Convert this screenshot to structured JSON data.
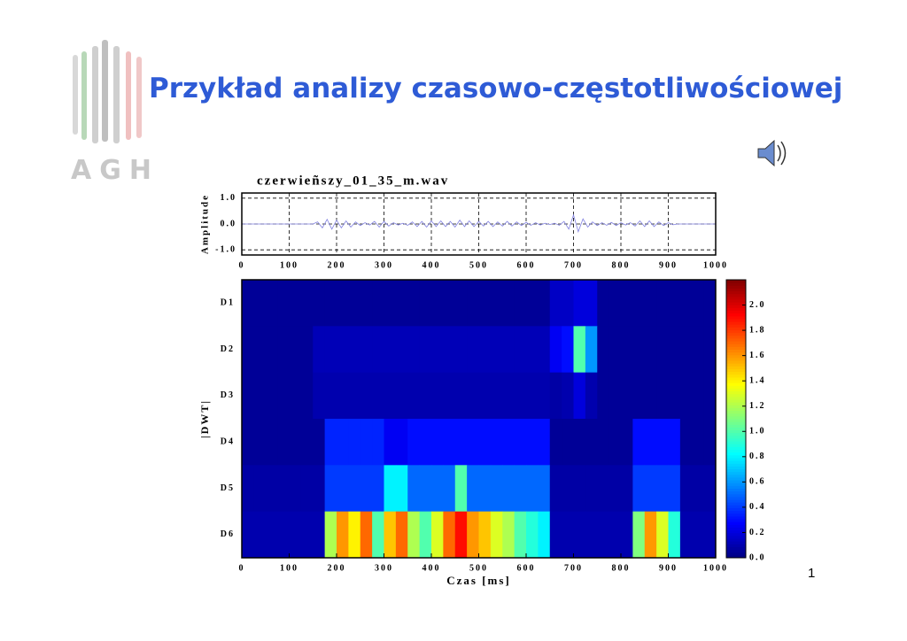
{
  "header": {
    "title": "Przykład analizy czasowo-częstotliwościowej",
    "logo": "AGH"
  },
  "page_number": "1",
  "chart_data": [
    {
      "type": "line",
      "title": "czerwieñszy_01_35_m.wav",
      "y_label": "Amplitude",
      "color": "#8080e0",
      "grid": true,
      "xlim": [
        0,
        1000
      ],
      "xticks": [
        0,
        100,
        200,
        300,
        400,
        500,
        600,
        700,
        800,
        900,
        1000
      ],
      "ylim": [
        -1.2,
        1.2
      ],
      "yticks": [
        {
          "value": 1,
          "label": "1.0"
        },
        {
          "value": 0,
          "label": "0.0"
        },
        {
          "value": -1,
          "label": "-1.0"
        }
      ],
      "x": [
        0,
        10,
        20,
        30,
        40,
        50,
        60,
        70,
        80,
        90,
        100,
        110,
        120,
        130,
        140,
        150,
        160,
        170,
        180,
        190,
        200,
        210,
        220,
        230,
        240,
        250,
        260,
        270,
        280,
        290,
        300,
        310,
        320,
        330,
        340,
        350,
        360,
        370,
        380,
        390,
        400,
        410,
        420,
        430,
        440,
        450,
        460,
        470,
        480,
        490,
        500,
        510,
        520,
        530,
        540,
        550,
        560,
        570,
        580,
        590,
        600,
        610,
        620,
        630,
        640,
        650,
        660,
        670,
        680,
        690,
        700,
        710,
        720,
        730,
        740,
        750,
        760,
        770,
        780,
        790,
        800,
        810,
        820,
        830,
        840,
        850,
        860,
        870,
        880,
        890,
        900,
        910,
        920,
        930,
        940,
        950,
        960,
        970,
        980,
        990,
        1000
      ],
      "values": [
        0,
        0,
        0,
        0,
        0,
        0,
        0,
        0,
        0,
        0,
        0,
        0,
        0,
        0,
        0,
        0,
        0.08,
        -0.15,
        0.18,
        -0.2,
        0.15,
        -0.15,
        0.12,
        -0.12,
        0.08,
        -0.06,
        0.05,
        -0.04,
        0.1,
        -0.12,
        0.1,
        -0.08,
        0.05,
        -0.04,
        0.03,
        -0.05,
        0.08,
        -0.1,
        0.1,
        -0.12,
        0.12,
        -0.1,
        0.12,
        -0.1,
        0.1,
        -0.12,
        0.15,
        -0.1,
        0.12,
        -0.1,
        0.1,
        -0.08,
        0.1,
        -0.1,
        0.08,
        -0.08,
        0.1,
        -0.08,
        0.08,
        -0.06,
        0.06,
        -0.05,
        0.05,
        -0.04,
        0.03,
        -0.02,
        0.03,
        -0.05,
        0.1,
        -0.2,
        0.35,
        -0.3,
        0.2,
        -0.12,
        0.08,
        -0.06,
        0.05,
        -0.05,
        0.06,
        -0.06,
        0.05,
        -0.04,
        0.05,
        -0.08,
        0.12,
        -0.1,
        0.12,
        -0.1,
        0.08,
        -0.06,
        0.05,
        -0.03,
        0,
        0,
        0,
        0,
        0,
        0,
        0,
        0,
        0
      ]
    },
    {
      "type": "heatmap",
      "y_label": "|DWT|",
      "x_label": "Czas [ms]",
      "colormap": "jet",
      "xlim": [
        0,
        1000
      ],
      "xticks": [
        0,
        100,
        200,
        300,
        400,
        500,
        600,
        700,
        800,
        900,
        1000
      ],
      "bins": [
        0,
        25,
        50,
        75,
        100,
        125,
        150,
        175,
        200,
        225,
        250,
        275,
        300,
        325,
        350,
        375,
        400,
        425,
        450,
        475,
        500,
        525,
        550,
        575,
        600,
        625,
        650,
        675,
        700,
        725,
        750,
        775,
        800,
        825,
        850,
        875,
        900,
        925,
        950,
        975,
        1000
      ],
      "categories": [
        "D1",
        "D2",
        "D3",
        "D4",
        "D5",
        "D6"
      ],
      "values": [
        [
          0.05,
          0.05,
          0.05,
          0.05,
          0.05,
          0.05,
          0.05,
          0.05,
          0.05,
          0.05,
          0.05,
          0.05,
          0.05,
          0.05,
          0.05,
          0.05,
          0.05,
          0.05,
          0.05,
          0.05,
          0.05,
          0.05,
          0.05,
          0.05,
          0.05,
          0.05,
          0.15,
          0.15,
          0.2,
          0.2,
          0.05,
          0.05,
          0.05,
          0.05,
          0.05,
          0.05,
          0.05,
          0.05,
          0.05,
          0.05
        ],
        [
          0.05,
          0.05,
          0.05,
          0.05,
          0.05,
          0.05,
          0.12,
          0.12,
          0.12,
          0.12,
          0.12,
          0.12,
          0.12,
          0.12,
          0.12,
          0.12,
          0.12,
          0.12,
          0.12,
          0.12,
          0.12,
          0.12,
          0.12,
          0.12,
          0.12,
          0.12,
          0.25,
          0.3,
          1.0,
          0.6,
          0.05,
          0.05,
          0.05,
          0.05,
          0.05,
          0.05,
          0.05,
          0.05,
          0.05,
          0.05
        ],
        [
          0.05,
          0.05,
          0.05,
          0.05,
          0.05,
          0.05,
          0.1,
          0.1,
          0.1,
          0.1,
          0.1,
          0.1,
          0.1,
          0.1,
          0.1,
          0.1,
          0.1,
          0.1,
          0.1,
          0.1,
          0.1,
          0.1,
          0.1,
          0.1,
          0.1,
          0.1,
          0.08,
          0.1,
          0.2,
          0.1,
          0.05,
          0.05,
          0.05,
          0.05,
          0.05,
          0.05,
          0.05,
          0.05,
          0.05,
          0.05
        ],
        [
          0.05,
          0.05,
          0.05,
          0.05,
          0.05,
          0.05,
          0.05,
          0.35,
          0.35,
          0.35,
          0.35,
          0.35,
          0.25,
          0.25,
          0.3,
          0.3,
          0.3,
          0.3,
          0.3,
          0.3,
          0.3,
          0.3,
          0.3,
          0.3,
          0.3,
          0.3,
          0.05,
          0.05,
          0.05,
          0.05,
          0.05,
          0.05,
          0.05,
          0.3,
          0.3,
          0.3,
          0.3,
          0.05,
          0.05,
          0.05
        ],
        [
          0.08,
          0.08,
          0.08,
          0.08,
          0.08,
          0.08,
          0.08,
          0.4,
          0.4,
          0.4,
          0.4,
          0.4,
          0.8,
          0.8,
          0.5,
          0.5,
          0.5,
          0.5,
          1.0,
          0.5,
          0.5,
          0.5,
          0.5,
          0.5,
          0.5,
          0.5,
          0.08,
          0.08,
          0.08,
          0.08,
          0.08,
          0.08,
          0.08,
          0.4,
          0.4,
          0.4,
          0.4,
          0.08,
          0.08,
          0.08
        ],
        [
          0.1,
          0.1,
          0.1,
          0.1,
          0.1,
          0.1,
          0.1,
          1.2,
          1.6,
          1.4,
          1.7,
          1.0,
          1.5,
          1.7,
          1.2,
          1.0,
          1.3,
          1.7,
          1.9,
          1.6,
          1.5,
          1.3,
          1.2,
          1.0,
          0.9,
          0.8,
          0.1,
          0.1,
          0.1,
          0.1,
          0.1,
          0.1,
          0.1,
          1.1,
          1.6,
          1.3,
          0.9,
          0.1,
          0.1,
          0.1
        ]
      ],
      "colorbar": {
        "lim": [
          0,
          2.2
        ],
        "ticks": [
          {
            "value": 0,
            "label": "0.0"
          },
          {
            "value": 0.2,
            "label": "0.2"
          },
          {
            "value": 0.4,
            "label": "0.4"
          },
          {
            "value": 0.6,
            "label": "0.6"
          },
          {
            "value": 0.8,
            "label": "0.8"
          },
          {
            "value": 1,
            "label": "1.0"
          },
          {
            "value": 1.2,
            "label": "1.2"
          },
          {
            "value": 1.4,
            "label": "1.4"
          },
          {
            "value": 1.6,
            "label": "1.6"
          },
          {
            "value": 1.8,
            "label": "1.8"
          },
          {
            "value": 2,
            "label": "2.0"
          }
        ]
      }
    }
  ]
}
